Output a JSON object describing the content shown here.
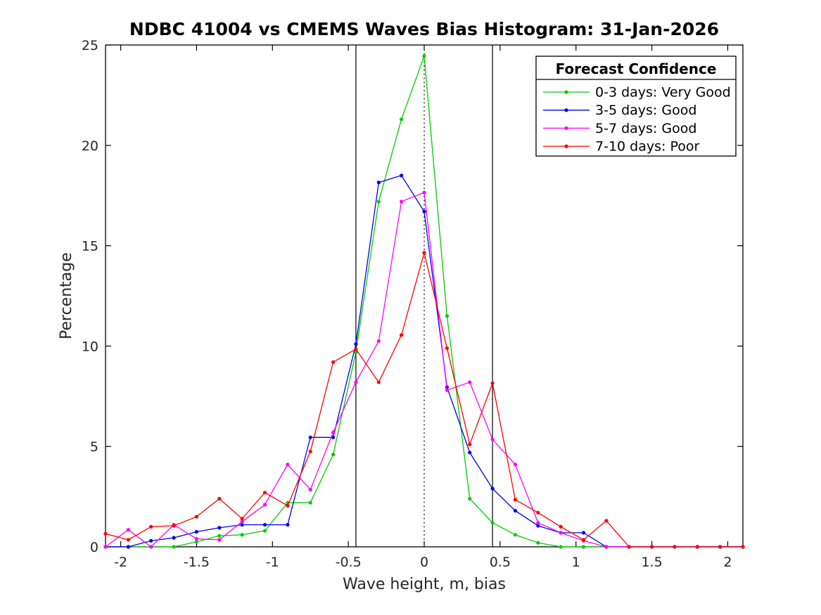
{
  "chart_data": {
    "type": "line",
    "title": "NDBC 41004 vs CMEMS Waves Bias Histogram: 31-Jan-2026",
    "xlabel": "Wave height, m, bias",
    "ylabel": "Percentage",
    "xlim": [
      -2.1,
      2.1
    ],
    "ylim": [
      0,
      25
    ],
    "grid": false,
    "xticks": [
      -2,
      -1.5,
      -1,
      -0.5,
      0,
      0.5,
      1,
      1.5,
      2
    ],
    "xtick_labels": [
      "-2",
      "-1.5",
      "-1",
      "-0.5",
      "0",
      "0.5",
      "1",
      "1.5",
      "2"
    ],
    "yticks": [
      0,
      5,
      10,
      15,
      20,
      25
    ],
    "ytick_labels": [
      "0",
      "5",
      "10",
      "15",
      "20",
      "25"
    ],
    "x": [
      -2.1,
      -1.95,
      -1.8,
      -1.65,
      -1.5,
      -1.35,
      -1.2,
      -1.05,
      -0.9,
      -0.75,
      -0.6,
      -0.45,
      -0.3,
      -0.15,
      0,
      0.15,
      0.3,
      0.45,
      0.6,
      0.75,
      0.9,
      1.05,
      1.2,
      1.35,
      1.5,
      1.65,
      1.8,
      1.95,
      2.1
    ],
    "series": [
      {
        "name": "0-3 days: Very Good",
        "color": "#00cc00",
        "marker": "dot",
        "values": [
          0,
          0,
          0,
          0,
          0.25,
          0.55,
          0.6,
          0.8,
          2.2,
          2.2,
          4.6,
          9.7,
          17.2,
          21.3,
          24.45,
          11.5,
          2.4,
          1.2,
          0.6,
          0.2,
          0,
          0,
          0,
          0,
          0,
          0,
          0,
          0,
          0
        ]
      },
      {
        "name": "3-5 days: Good",
        "color": "#0000ee",
        "marker": "dot",
        "values": [
          0,
          0,
          0.3,
          0.45,
          0.75,
          0.95,
          1.1,
          1.1,
          1.1,
          5.45,
          5.45,
          10.1,
          18.15,
          18.5,
          16.7,
          7.95,
          4.7,
          2.9,
          1.8,
          1.05,
          0.7,
          0.7,
          0,
          0,
          0,
          0,
          0,
          0,
          0
        ]
      },
      {
        "name": "5-7 days: Good",
        "color": "#ff00ff",
        "marker": "dot",
        "values": [
          0,
          0.85,
          0,
          1.1,
          0.4,
          0.35,
          1.25,
          2.1,
          4.1,
          2.85,
          5.7,
          8.2,
          10.25,
          17.2,
          17.65,
          7.8,
          8.2,
          5.35,
          4.1,
          1.2,
          0.7,
          0.3,
          0,
          0,
          0,
          0,
          0,
          0,
          0
        ]
      },
      {
        "name": "7-10 days: Poor",
        "color": "#ff0000",
        "marker": "dot",
        "values": [
          0.65,
          0.35,
          1.0,
          1.05,
          1.5,
          2.4,
          1.4,
          2.7,
          2.05,
          4.75,
          9.2,
          9.85,
          8.2,
          10.55,
          14.65,
          9.9,
          5.1,
          8.15,
          2.35,
          1.7,
          1.0,
          0.35,
          1.3,
          0,
          0,
          0,
          0,
          0,
          0
        ]
      }
    ],
    "reference_lines": [
      {
        "x": -0.45,
        "style": "solid",
        "color": "#000000"
      },
      {
        "x": 0,
        "style": "dotted",
        "color": "#000000"
      },
      {
        "x": 0.45,
        "style": "solid",
        "color": "#000000"
      }
    ],
    "legend": {
      "title": "Forecast Confidence",
      "position": "top-right"
    }
  }
}
